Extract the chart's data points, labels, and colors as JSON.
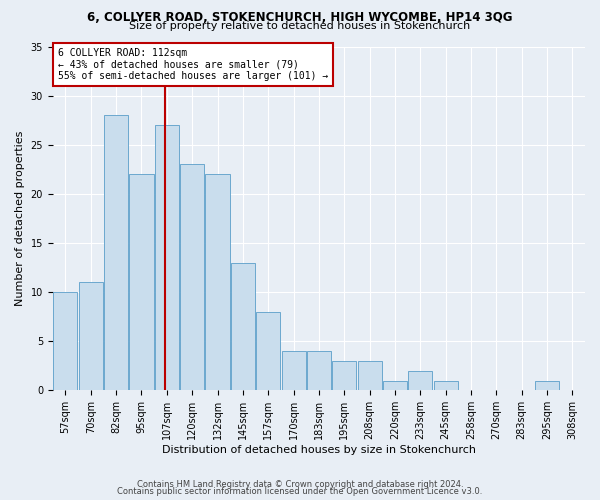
{
  "title1": "6, COLLYER ROAD, STOKENCHURCH, HIGH WYCOMBE, HP14 3QG",
  "title2": "Size of property relative to detached houses in Stokenchurch",
  "xlabel": "Distribution of detached houses by size in Stokenchurch",
  "ylabel": "Number of detached properties",
  "footnote1": "Contains HM Land Registry data © Crown copyright and database right 2024.",
  "footnote2": "Contains public sector information licensed under the Open Government Licence v3.0.",
  "annotation_line1": "6 COLLYER ROAD: 112sqm",
  "annotation_line2": "← 43% of detached houses are smaller (79)",
  "annotation_line3": "55% of semi-detached houses are larger (101) →",
  "bar_color": "#c9dded",
  "bar_edge_color": "#5a9ec9",
  "vline_color": "#bb0000",
  "vline_bin": 4,
  "categories": [
    "57sqm",
    "70sqm",
    "82sqm",
    "95sqm",
    "107sqm",
    "120sqm",
    "132sqm",
    "145sqm",
    "157sqm",
    "170sqm",
    "183sqm",
    "195sqm",
    "208sqm",
    "220sqm",
    "233sqm",
    "245sqm",
    "258sqm",
    "270sqm",
    "283sqm",
    "295sqm",
    "308sqm"
  ],
  "values": [
    10,
    11,
    28,
    22,
    27,
    23,
    22,
    13,
    8,
    4,
    4,
    3,
    3,
    1,
    2,
    1,
    0,
    0,
    0,
    1,
    0
  ],
  "ylim": [
    0,
    35
  ],
  "yticks": [
    0,
    5,
    10,
    15,
    20,
    25,
    30,
    35
  ],
  "bg_color": "#e8eef5",
  "grid_color": "#ffffff",
  "title1_fontsize": 8.5,
  "title2_fontsize": 8,
  "ylabel_fontsize": 8,
  "xlabel_fontsize": 8,
  "tick_fontsize": 7,
  "annot_fontsize": 7,
  "footnote_fontsize": 6
}
